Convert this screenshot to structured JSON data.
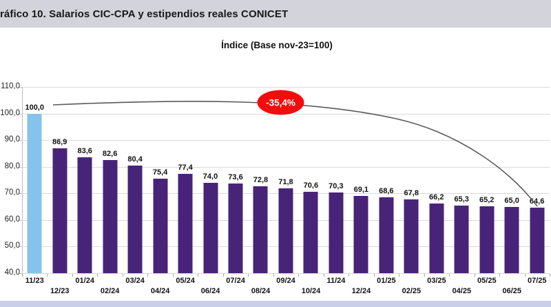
{
  "header": {
    "title": "ráfico 10. Salarios CIC-CPA y estipendios reales CONICET"
  },
  "chart_data": {
    "type": "bar",
    "title": "Índice (Base nov-23=100)",
    "categories": [
      "11/23",
      "12/23",
      "01/24",
      "02/24",
      "03/24",
      "04/24",
      "05/24",
      "06/24",
      "07/24",
      "08/24",
      "09/24",
      "10/24",
      "11/24",
      "12/24",
      "01/25",
      "02/25",
      "03/25",
      "04/25",
      "05/25",
      "06/25",
      "07/25"
    ],
    "values": [
      100.0,
      86.9,
      83.6,
      82.6,
      80.4,
      75.4,
      77.4,
      74.0,
      73.6,
      72.8,
      71.8,
      70.6,
      70.3,
      69.1,
      68.6,
      67.8,
      66.2,
      65.3,
      65.2,
      65.0,
      64.6
    ],
    "ylabel": "",
    "xlabel": "",
    "ylim": [
      40,
      110
    ],
    "ytick_step": 10,
    "grid": true,
    "legend": "none",
    "decimal_separator": ",",
    "annotation": {
      "label": "-35,4%"
    },
    "colors": {
      "bar": "#482478",
      "first_bar": "#85c3ec",
      "gridline": "#d9d9d9",
      "curve": "#595959",
      "annotation_fill": "#f20d0d",
      "header_band": "#d3d4db",
      "footer_band": "#c9cfe8"
    }
  }
}
